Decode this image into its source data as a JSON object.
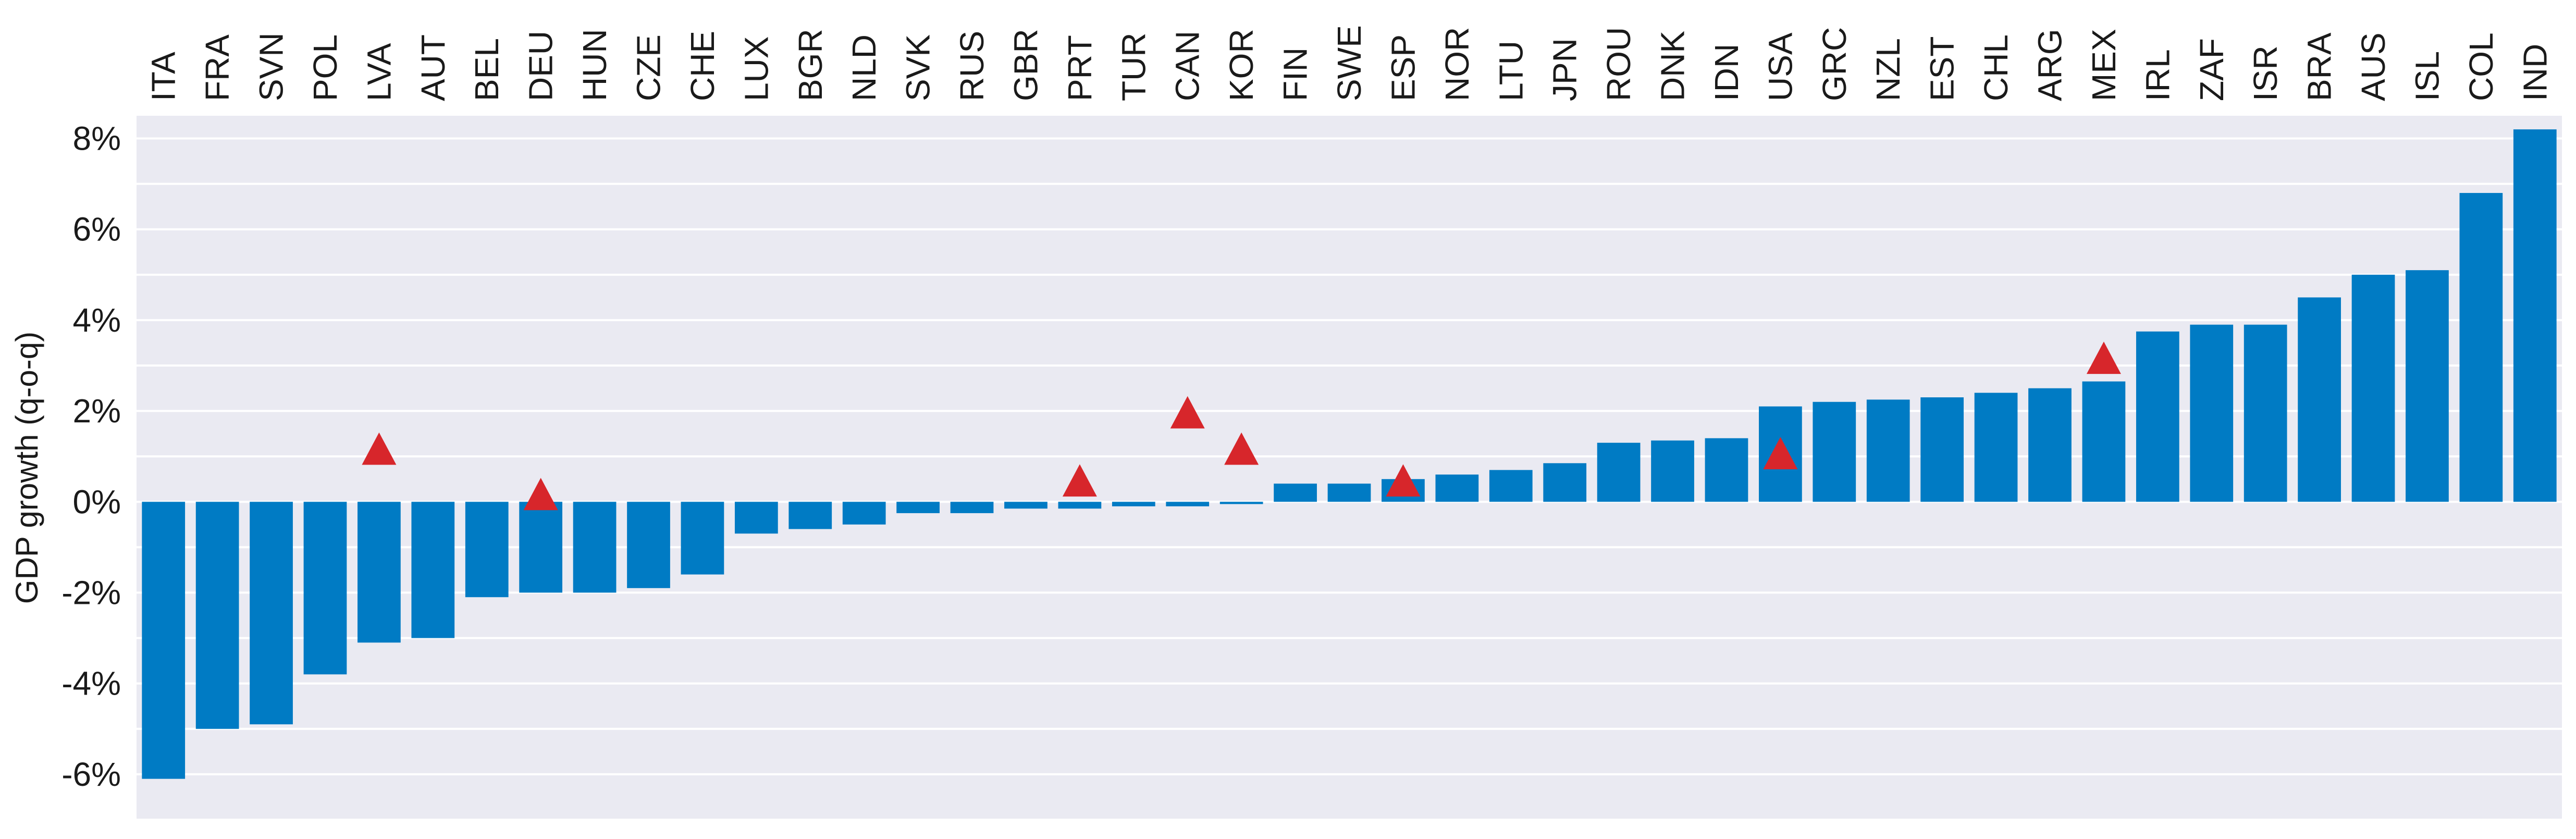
{
  "chart_data": {
    "type": "bar",
    "title": "",
    "xlabel": "",
    "ylabel": "GDP growth (q-o-q)",
    "ylim": [
      -7,
      8.5
    ],
    "yticks": [
      -6,
      -4,
      -2,
      0,
      2,
      4,
      6,
      8
    ],
    "ytick_labels": [
      "-6%",
      "-4%",
      "-2%",
      "0%",
      "2%",
      "4%",
      "6%",
      "8%"
    ],
    "grid": true,
    "grid_minor_step": 1,
    "categories": [
      "ITA",
      "FRA",
      "SVN",
      "POL",
      "LVA",
      "AUT",
      "BEL",
      "DEU",
      "HUN",
      "CZE",
      "CHE",
      "LUX",
      "BGR",
      "NLD",
      "SVK",
      "RUS",
      "GBR",
      "PRT",
      "TUR",
      "CAN",
      "KOR",
      "FIN",
      "SWE",
      "ESP",
      "NOR",
      "LTU",
      "JPN",
      "ROU",
      "DNK",
      "IDN",
      "USA",
      "GRC",
      "NZL",
      "EST",
      "CHL",
      "ARG",
      "MEX",
      "IRL",
      "ZAF",
      "ISR",
      "BRA",
      "AUS",
      "ISL",
      "COL",
      "IND"
    ],
    "series": [
      {
        "type": "bar",
        "values": [
          -6.1,
          -5.0,
          -4.9,
          -3.8,
          -3.1,
          -3.0,
          -2.1,
          -2.0,
          -2.0,
          -1.9,
          -1.6,
          -0.7,
          -0.6,
          -0.5,
          -0.25,
          -0.25,
          -0.15,
          -0.15,
          -0.1,
          -0.1,
          -0.05,
          0.4,
          0.4,
          0.5,
          0.6,
          0.7,
          0.85,
          1.3,
          1.35,
          1.4,
          2.1,
          2.2,
          2.25,
          2.3,
          2.4,
          2.5,
          2.65,
          3.75,
          3.9,
          3.9,
          4.5,
          5.0,
          5.1,
          6.8,
          8.2
        ]
      },
      {
        "type": "marker",
        "marker": "triangle",
        "points": [
          {
            "category": "LVA",
            "value": 1.1
          },
          {
            "category": "DEU",
            "value": 0.1
          },
          {
            "category": "PRT",
            "value": 0.4
          },
          {
            "category": "CAN",
            "value": 1.9
          },
          {
            "category": "KOR",
            "value": 1.1
          },
          {
            "category": "ESP",
            "value": 0.4
          },
          {
            "category": "USA",
            "value": 1.0
          },
          {
            "category": "MEX",
            "value": 3.1
          }
        ]
      }
    ],
    "colors": {
      "bar": "#007bc4",
      "marker": "#d7262b",
      "plot_background": "#eaeaf2",
      "grid": "#ffffff",
      "text": "#1a1a1a"
    }
  }
}
